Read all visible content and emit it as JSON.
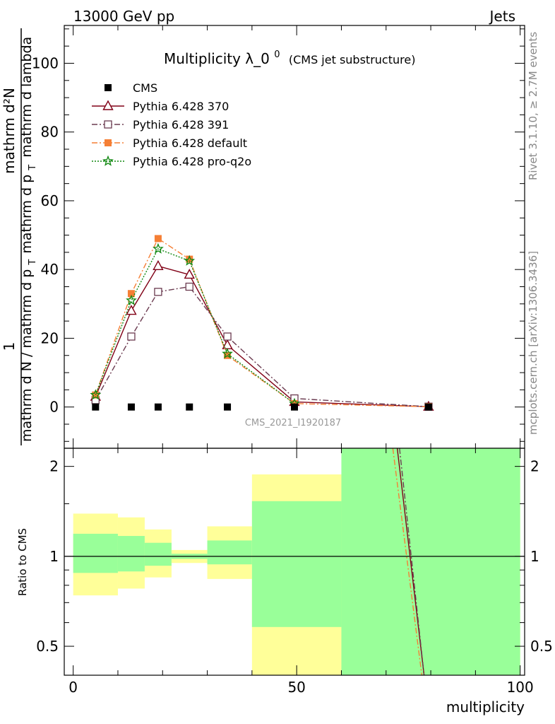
{
  "header": {
    "left": "13000 GeV pp",
    "right": "Jets"
  },
  "side_labels": {
    "rivet": "Rivet 3.1.10, ≥ 2.7M events",
    "mcplots": "mcplots.cern.ch [arXiv:1306.3436]"
  },
  "ylabel_main": {
    "one": "1",
    "numerator": "mathrm d²N",
    "denominator": "mathrm d N / mathrm d p",
    "tail1": "mathrm d p",
    "tail2": "mathrm d lambda",
    "sub": "T"
  },
  "watermark": "CMS_2021_I1920187",
  "chart_data": [
    {
      "type": "scatter",
      "title": "Multiplicity λ_0",
      "title_sup": "0",
      "subtitle": "(CMS jet substructure)",
      "xlabel": "multiplicity",
      "xlim": [
        -2,
        101
      ],
      "ylim": [
        -12,
        111
      ],
      "yticks": [
        0,
        20,
        40,
        60,
        80,
        100
      ],
      "legend_position": "top-left",
      "series": [
        {
          "name": "CMS",
          "color": "#000000",
          "marker": "filled-square",
          "line": "none",
          "x": [
            5,
            13,
            19,
            26,
            34.5,
            49.5,
            79.5
          ],
          "y": [
            0,
            0,
            0,
            0,
            0,
            0,
            0
          ]
        },
        {
          "name": "Pythia 6.428 370",
          "color": "#800016",
          "marker": "open-triangle",
          "line": "solid",
          "x": [
            5,
            13,
            19,
            26,
            34.5,
            49.5,
            79.5
          ],
          "y": [
            3.0,
            28.0,
            41.0,
            38.5,
            18.0,
            1.5,
            0.1
          ]
        },
        {
          "name": "Pythia 6.428 391",
          "color": "#6b3b50",
          "marker": "open-square",
          "line": "dashdot",
          "x": [
            5,
            13,
            19,
            26,
            34.5,
            49.5,
            79.5
          ],
          "y": [
            2.0,
            20.5,
            33.5,
            35.0,
            20.5,
            2.5,
            0.1
          ]
        },
        {
          "name": "Pythia 6.428 default",
          "color": "#f57f35",
          "marker": "filled-square",
          "line": "dashdot",
          "x": [
            5,
            13,
            19,
            26,
            34.5,
            49.5,
            79.5
          ],
          "y": [
            3.5,
            33.0,
            49.0,
            43.0,
            15.0,
            1.0,
            0.1
          ]
        },
        {
          "name": "Pythia 6.428 pro-q2o",
          "color": "#118811",
          "marker": "open-star",
          "line": "dotted",
          "x": [
            5,
            13,
            19,
            26,
            34.5,
            49.5
          ],
          "y": [
            3.5,
            31.0,
            46.0,
            42.5,
            15.5,
            1.0
          ]
        }
      ]
    },
    {
      "type": "area",
      "ylabel": "Ratio to CMS",
      "xlabel": "multiplicity",
      "xlim": [
        -2,
        101
      ],
      "ylim": [
        0.4,
        2.3
      ],
      "yscale": "log",
      "yticks": [
        0.5,
        1,
        2
      ],
      "xticks": [
        0,
        50,
        100
      ],
      "reference_line": 1,
      "bands": [
        {
          "x0": 0,
          "x1": 10,
          "stat_lo": 0.88,
          "stat_hi": 1.19,
          "sys_lo": 0.74,
          "sys_hi": 1.39
        },
        {
          "x0": 10,
          "x1": 16,
          "stat_lo": 0.89,
          "stat_hi": 1.17,
          "sys_lo": 0.78,
          "sys_hi": 1.35
        },
        {
          "x0": 16,
          "x1": 22,
          "stat_lo": 0.93,
          "stat_hi": 1.11,
          "sys_lo": 0.85,
          "sys_hi": 1.23
        },
        {
          "x0": 22,
          "x1": 30,
          "stat_lo": 0.98,
          "stat_hi": 1.02,
          "sys_lo": 0.95,
          "sys_hi": 1.05
        },
        {
          "x0": 30,
          "x1": 40,
          "stat_lo": 0.94,
          "stat_hi": 1.13,
          "sys_lo": 0.84,
          "sys_hi": 1.26
        },
        {
          "x0": 40,
          "x1": 60,
          "stat_lo": 0.58,
          "stat_hi": 1.53,
          "sys_lo": 0.4,
          "sys_hi": 1.88
        },
        {
          "x0": 60,
          "x1": 100,
          "stat_lo": 0.4,
          "stat_hi": 2.3,
          "sys_lo": 0.4,
          "sys_hi": 2.3
        }
      ],
      "band_colors": {
        "stat": "#99ff99",
        "sys": "#ffff99"
      },
      "ratio_lines": [
        {
          "name": "Pythia 6.428 370",
          "color": "#800016",
          "line": "solid",
          "x": [
            72.5,
            78.5
          ],
          "y": [
            2.3,
            0.4
          ]
        },
        {
          "name": "Pythia 6.428 391",
          "color": "#6b3b50",
          "line": "dashdot",
          "x": [
            73.0,
            78.5
          ],
          "y": [
            2.3,
            0.4
          ]
        },
        {
          "name": "Pythia 6.428 default",
          "color": "#f57f35",
          "line": "dashdot",
          "x": [
            71.5,
            78.0
          ],
          "y": [
            2.3,
            0.4
          ]
        }
      ]
    }
  ]
}
